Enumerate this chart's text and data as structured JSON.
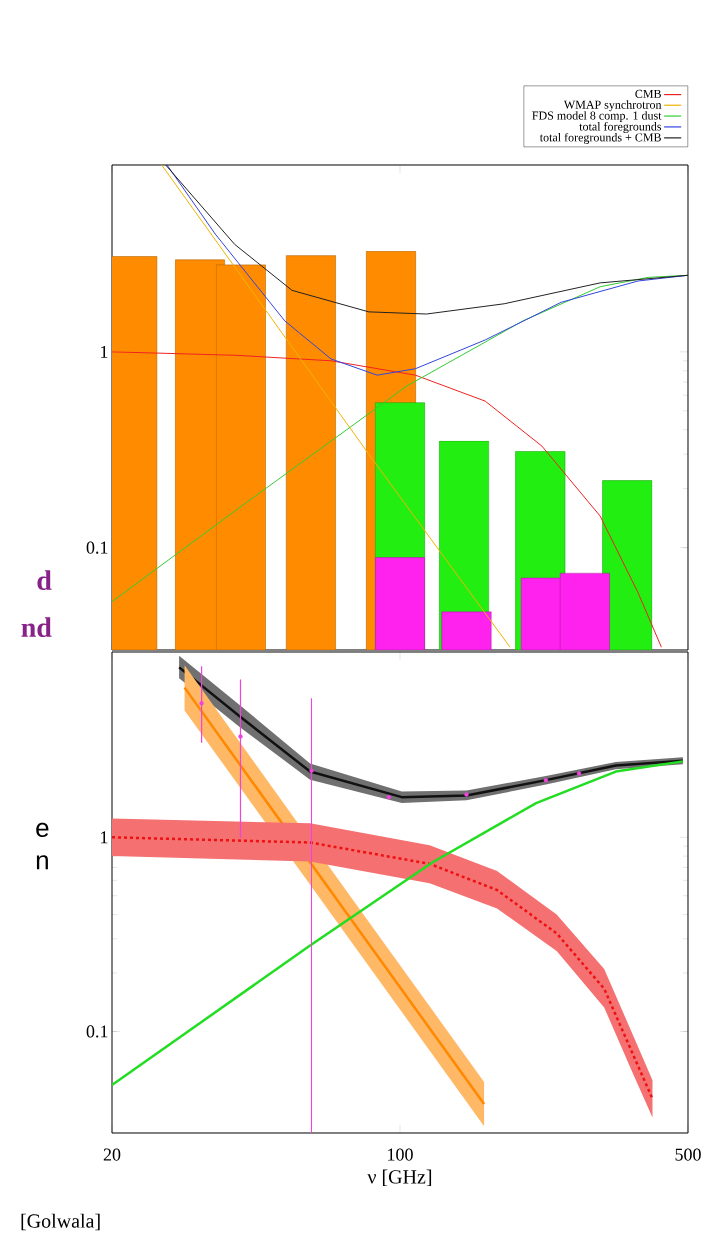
{
  "chart_data": [
    {
      "type": "line",
      "log": "xy",
      "xlim": [
        20,
        500
      ],
      "ylim": [
        0.03,
        9
      ],
      "xticks": [
        20,
        100,
        500
      ],
      "yticks": [
        0.1,
        1
      ],
      "tick_labels": "y",
      "legend": "top right",
      "annotations": [
        "d",
        "nd"
      ],
      "series": [
        {
          "type": "bar",
          "color": "#ff8c00",
          "x": [
            22.4,
            32.7,
            41.1,
            60.8,
            95.1
          ],
          "values": [
            3.07,
            2.95,
            2.78,
            3.1,
            3.26
          ]
        },
        {
          "type": "bar",
          "color": "#22ee11",
          "x": [
            100,
            143,
            219,
            356
          ],
          "values": [
            0.55,
            0.35,
            0.31,
            0.22
          ]
        },
        {
          "type": "bar",
          "color": "#ff22ee",
          "x": [
            100,
            145,
            226,
            281
          ],
          "values": [
            0.089,
            0.047,
            0.07,
            0.074
          ]
        },
        {
          "name": "CMB",
          "color": "#ee2222",
          "x": [
            20,
            40,
            68,
            109,
            161,
            221,
            306,
            378,
            431
          ],
          "values": [
            1.0,
            0.96,
            0.9,
            0.76,
            0.56,
            0.33,
            0.145,
            0.059,
            0.031
          ]
        },
        {
          "name": "WMAP synchrotron",
          "color": "#f0b400",
          "x": [
            26.4,
            84,
            185
          ],
          "values": [
            9.0,
            0.3,
            0.031
          ]
        },
        {
          "name": "FDS model 8 comp. 1 dust",
          "color": "#33cc33",
          "x": [
            20,
            44,
            104,
            199,
            306,
            400,
            500
          ],
          "values": [
            0.053,
            0.18,
            0.67,
            1.44,
            2.15,
            2.4,
            2.46
          ]
        },
        {
          "name": "total foregrounds",
          "color": "#3344dd",
          "x": [
            27.2,
            35.6,
            52.5,
            68,
            88,
            109,
            161,
            246,
            378,
            500
          ],
          "values": [
            9.0,
            4.0,
            1.44,
            0.92,
            0.76,
            0.82,
            1.15,
            1.79,
            2.3,
            2.46
          ]
        },
        {
          "name": "total foregrounds + CMB",
          "color": "#222222",
          "x": [
            27,
            39.7,
            54.7,
            84,
            116,
            179,
            306,
            500
          ],
          "values": [
            9.0,
            3.54,
            2.06,
            1.6,
            1.56,
            1.76,
            2.25,
            2.46
          ]
        }
      ]
    },
    {
      "type": "line",
      "log": "xy",
      "xlim": [
        20,
        500
      ],
      "ylim": [
        0.03,
        9
      ],
      "xticks": [
        20,
        100,
        500
      ],
      "yticks": [
        0.1,
        1
      ],
      "xlabel": "ν [GHz]",
      "annotations": [
        "e",
        "n",
        "[Golwala]"
      ],
      "series": [
        {
          "color": "#111111",
          "x": [
            29.1,
            40.8,
            60.5,
            101,
            145,
            226,
            334,
            486
          ],
          "values": [
            7.5,
            4.2,
            2.18,
            1.61,
            1.64,
            1.97,
            2.34,
            2.48
          ],
          "lower": [
            6.6,
            3.7,
            1.98,
            1.5,
            1.55,
            1.87,
            2.24,
            2.38
          ],
          "upper": [
            8.6,
            4.8,
            2.4,
            1.72,
            1.74,
            2.07,
            2.44,
            2.58
          ]
        },
        {
          "color": "#ff8800",
          "x": [
            30,
            75.6,
            160
          ],
          "values": [
            5.9,
            0.385,
            0.0423
          ],
          "lower": [
            4.5,
            0.296,
            0.0325
          ],
          "upper": [
            7.7,
            0.5,
            0.055
          ]
        },
        {
          "color": "#ee1111",
          "line_style": "dashed",
          "x": [
            20,
            60.5,
            118,
            172,
            240,
            313,
            366,
            410
          ],
          "values": [
            1.0,
            0.94,
            0.73,
            0.535,
            0.32,
            0.166,
            0.078,
            0.045
          ],
          "lower": [
            0.8,
            0.75,
            0.58,
            0.43,
            0.26,
            0.133,
            0.062,
            0.036
          ],
          "upper": [
            1.25,
            1.18,
            0.91,
            0.67,
            0.4,
            0.21,
            0.098,
            0.056
          ]
        },
        {
          "color": "#22dd22",
          "x": [
            20,
            60.5,
            120,
            214,
            334,
            486
          ],
          "values": [
            0.053,
            0.277,
            0.744,
            1.5,
            2.18,
            2.46
          ]
        },
        {
          "type": "scatter",
          "marker": "circle",
          "color": "#ee44dd",
          "x": [
            33,
            41,
            61,
            94,
            145,
            226,
            272
          ],
          "values": [
            4.9,
            3.3,
            2.2,
            1.61,
            1.66,
            1.97,
            2.13
          ],
          "errors": [
            [
              3.07,
              7.6
            ],
            [
              0.99,
              6.5
            ],
            [
              0.03,
              5.2
            ],
            null,
            null,
            null,
            null
          ]
        }
      ]
    }
  ]
}
